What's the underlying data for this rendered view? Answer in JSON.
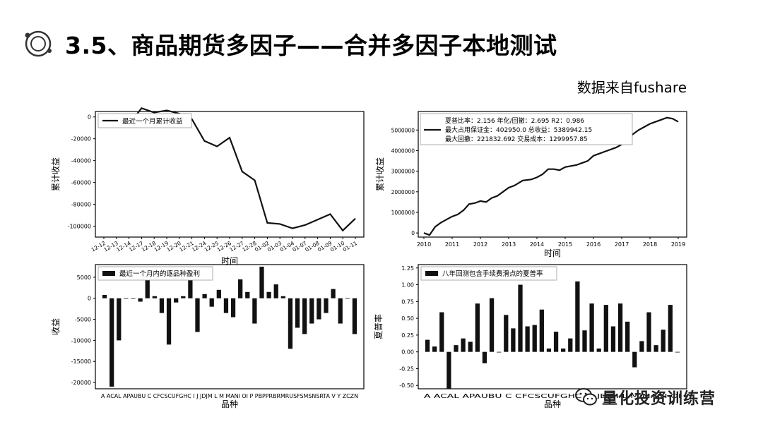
{
  "slide": {
    "title": "3.5、商品期货多因子——合并多因子本地测试",
    "source_note": "数据来自fushare",
    "watermark": "量化投资训练营"
  },
  "chart_data": [
    {
      "type": "line",
      "legend": [
        "最近一个月累计收益"
      ],
      "xlabel": "时间",
      "ylabel": "累计收益",
      "x": [
        "12-12",
        "12-13",
        "12-14",
        "12-17",
        "12-18",
        "12-19",
        "12-20",
        "12-21",
        "12-24",
        "12-25",
        "12-26",
        "12-27",
        "12-28",
        "01-02",
        "01-03",
        "01-04",
        "01-07",
        "01-08",
        "01-09",
        "01-10",
        "01-11"
      ],
      "series": [
        {
          "name": "最近一个月累计收益",
          "values": [
            -8000,
            -3000,
            -7000,
            8000,
            4000,
            6000,
            3000,
            -2000,
            -22000,
            -27000,
            -19000,
            -50000,
            -58000,
            -97000,
            -98000,
            -102000,
            -99000,
            -94000,
            -89000,
            -104000,
            -93000
          ]
        }
      ],
      "yticks": [
        0,
        -20000,
        -40000,
        -60000,
        -80000,
        -100000
      ],
      "ylim": [
        -110000,
        5000
      ],
      "legend_position": "top-left"
    },
    {
      "type": "line",
      "xlabel": "时间",
      "ylabel": "累计收益",
      "xticks": [
        "2010",
        "2011",
        "2012",
        "2013",
        "2014",
        "2015",
        "2016",
        "2017",
        "2018",
        "2019"
      ],
      "xlim": [
        2009.8,
        2019.3
      ],
      "yticks": [
        0,
        1000000,
        2000000,
        3000000,
        4000000,
        5000000
      ],
      "ylim": [
        -200000,
        5900000
      ],
      "series": [
        {
          "name": "最大占用保证金：402950.0  总收益：5389942.15",
          "x": [
            2010.0,
            2010.2,
            2010.4,
            2010.6,
            2010.8,
            2011.0,
            2011.2,
            2011.4,
            2011.6,
            2011.8,
            2012.0,
            2012.2,
            2012.4,
            2012.6,
            2012.8,
            2013.0,
            2013.2,
            2013.5,
            2013.8,
            2014.0,
            2014.2,
            2014.4,
            2014.6,
            2014.8,
            2015.0,
            2015.2,
            2015.4,
            2015.6,
            2015.8,
            2016.0,
            2016.2,
            2016.4,
            2016.6,
            2016.8,
            2017.0,
            2017.2,
            2017.4,
            2017.6,
            2017.8,
            2018.0,
            2018.2,
            2018.4,
            2018.6,
            2018.8,
            2019.0
          ],
          "values": [
            0,
            -100000,
            300000,
            500000,
            650000,
            800000,
            900000,
            1100000,
            1400000,
            1450000,
            1550000,
            1500000,
            1700000,
            1800000,
            2000000,
            2200000,
            2300000,
            2550000,
            2600000,
            2700000,
            2850000,
            3100000,
            3100000,
            3050000,
            3200000,
            3250000,
            3300000,
            3400000,
            3500000,
            3750000,
            3850000,
            3950000,
            4050000,
            4150000,
            4300000,
            4550000,
            4800000,
            5000000,
            5150000,
            5300000,
            5400000,
            5500000,
            5600000,
            5550000,
            5400000
          ]
        }
      ],
      "stats_box": {
        "line1": "夏普比率：2.156    年化/回撤：2.695    R2：0.986",
        "line2": "最大占用保证金：402950.0    总收益：5389942.15",
        "line3": "最大回撤：221832.692    交易成本：1299957.85"
      },
      "legend_position": "top-left"
    },
    {
      "type": "bar",
      "legend": [
        "最近一个月内的逐品种盈利"
      ],
      "xlabel": "品种",
      "ylabel": "收益",
      "categories": [
        "A",
        "AG",
        "AL",
        "AP",
        "AU",
        "BU",
        "C",
        "CF",
        "CS",
        "CU",
        "FG",
        "HC",
        "I",
        "J",
        "JD",
        "JM",
        "L",
        "M",
        "MA",
        "NI",
        "OI",
        "P",
        "PB",
        "PP",
        "RB",
        "RM",
        "RU",
        "SF",
        "SM",
        "SN",
        "SR",
        "TA",
        "V",
        "Y",
        "ZC",
        "ZN"
      ],
      "category_label": "A ACAL APAUBU C CFCSCUFGHC I  J JDJM L  M MANI OI  P PBPPRBRMRUSFSMSNSRTA V  Y ZCZN",
      "values": [
        800,
        -21000,
        -10000,
        0,
        0,
        -800,
        5000,
        500,
        -3500,
        -11000,
        -1000,
        500,
        5200,
        -8000,
        1000,
        -2000,
        2000,
        -3500,
        -4500,
        4500,
        1500,
        -6000,
        7500,
        1500,
        3300,
        500,
        -12000,
        -7000,
        -8500,
        -6000,
        -5000,
        -3500,
        2200,
        -6000,
        0,
        -8500
      ],
      "yticks": [
        5000,
        0,
        -5000,
        -10000,
        -15000,
        -20000
      ],
      "ylim": [
        -21500,
        8000
      ],
      "legend_position": "top-left"
    },
    {
      "type": "bar",
      "legend": [
        "八年回测包含手续费滑点的夏普率"
      ],
      "xlabel": "品种",
      "ylabel": "夏普率",
      "categories": [
        "A",
        "AG",
        "AL",
        "AP",
        "AU",
        "BU",
        "C",
        "CF",
        "CS",
        "CU",
        "FG",
        "HC",
        "I",
        "J",
        "JD",
        "JM",
        "L",
        "M",
        "MA",
        "NI",
        "OI",
        "P",
        "PB",
        "PP",
        "RB",
        "RM",
        "RU",
        "SF",
        "SM",
        "SN",
        "SR",
        "TA",
        "V",
        "Y",
        "ZC",
        "ZN"
      ],
      "category_label": "A ACAL APAUBU C CFCSCUFGHC I  J JDJM L  M MANI OI",
      "values": [
        0.18,
        0.08,
        0.59,
        -0.55,
        0.1,
        0.2,
        0.15,
        0.72,
        -0.17,
        0.8,
        0.0,
        0.55,
        0.35,
        1.0,
        0.38,
        0.4,
        0.63,
        0.05,
        0.3,
        0.05,
        0.2,
        1.05,
        0.32,
        0.72,
        0.05,
        0.7,
        0.38,
        0.72,
        0.45,
        -0.23,
        0.16,
        0.59,
        0.1,
        0.33,
        0.7,
        0.0
      ],
      "yticks": [
        1.25,
        1.0,
        0.75,
        0.5,
        0.25,
        0.0,
        -0.25,
        -0.5
      ],
      "ylim": [
        -0.55,
        1.3
      ],
      "legend_position": "top-left"
    }
  ],
  "icons": {
    "slide": "orbit-logo-icon",
    "watermark": "wechat-icon"
  }
}
